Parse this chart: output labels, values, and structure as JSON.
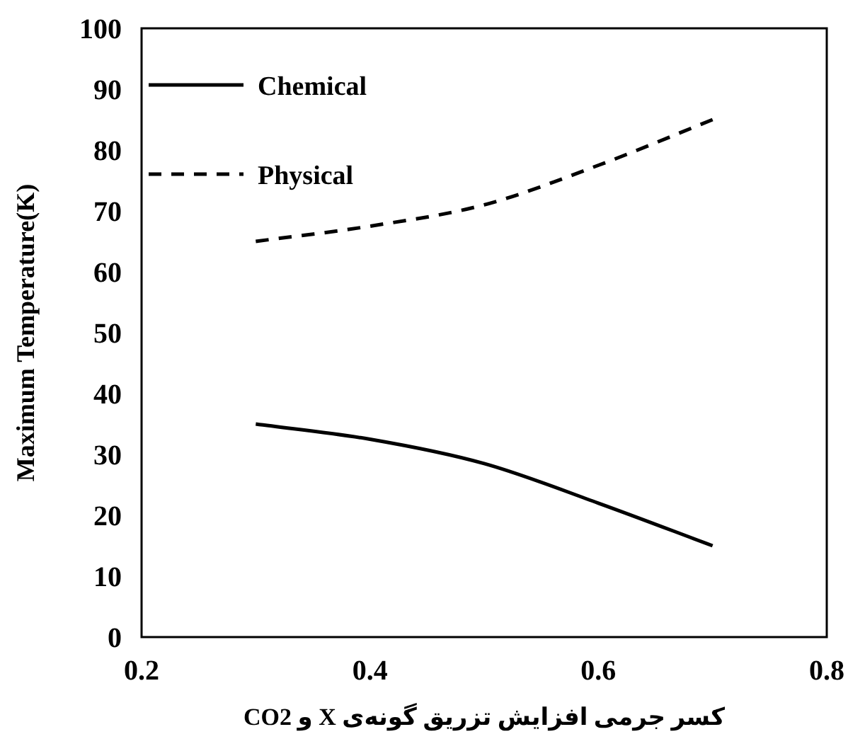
{
  "chart_data": {
    "type": "line",
    "xlabel": "کسر جرمی افزایش تزریق گونه‌ی X و CO2",
    "ylabel": "Maximum Temperature(K)",
    "xlim": [
      0.2,
      0.8
    ],
    "xticks": [
      0.2,
      0.4,
      0.6,
      0.8
    ],
    "ylim": [
      0,
      100
    ],
    "yticks": [
      0,
      10,
      20,
      30,
      40,
      50,
      60,
      70,
      80,
      90,
      100
    ],
    "legend": "top left",
    "marker": "none",
    "series": [
      {
        "name": "Chemical",
        "color": "#000000",
        "line_style": "solid",
        "x": [
          0.3,
          0.4,
          0.5,
          0.6,
          0.7
        ],
        "values": [
          35,
          32.5,
          28.5,
          22,
          15
        ]
      },
      {
        "name": "Physical",
        "color": "#000000",
        "line_style": "dashed",
        "x": [
          0.3,
          0.4,
          0.5,
          0.6,
          0.7
        ],
        "values": [
          65,
          67.5,
          71,
          77.5,
          85
        ]
      }
    ]
  }
}
